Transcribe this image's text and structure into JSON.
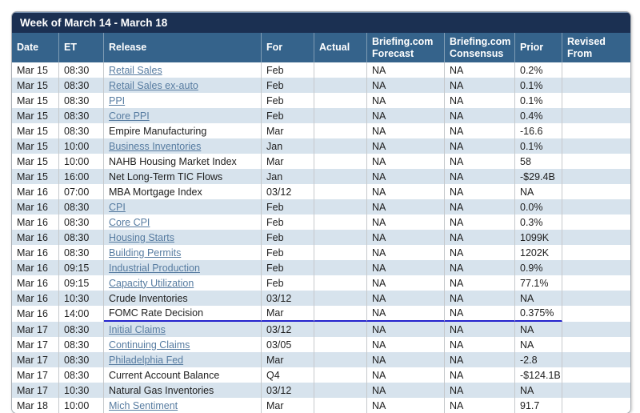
{
  "title": "Week of March 14 - March 18",
  "colors": {
    "title_bar": "#1b3052",
    "header_bg": "#35638b",
    "row_alt": "#d7e3ed",
    "link": "#567ba0",
    "separator": "#c6c9cc",
    "border": "#a9aeb4",
    "fomc_line": "#2424cc"
  },
  "columns": [
    {
      "key": "date",
      "label": "Date"
    },
    {
      "key": "et",
      "label": "ET"
    },
    {
      "key": "release",
      "label": "Release"
    },
    {
      "key": "for",
      "label": "For"
    },
    {
      "key": "actual",
      "label": "Actual"
    },
    {
      "key": "forecast",
      "label": "Briefing.com Forecast"
    },
    {
      "key": "consensus",
      "label": "Briefing.com Consensus"
    },
    {
      "key": "prior",
      "label": "Prior"
    },
    {
      "key": "revised",
      "label": "Revised From"
    }
  ],
  "rows": [
    {
      "date": "Mar 15",
      "et": "08:30",
      "release": "Retail Sales",
      "link": true,
      "for": "Feb",
      "actual": "",
      "forecast": "NA",
      "consensus": "NA",
      "prior": "0.2%",
      "revised": ""
    },
    {
      "date": "Mar 15",
      "et": "08:30",
      "release": "Retail Sales ex-auto",
      "link": true,
      "for": "Feb",
      "actual": "",
      "forecast": "NA",
      "consensus": "NA",
      "prior": "0.1%",
      "revised": ""
    },
    {
      "date": "Mar 15",
      "et": "08:30",
      "release": "PPI",
      "link": true,
      "for": "Feb",
      "actual": "",
      "forecast": "NA",
      "consensus": "NA",
      "prior": "0.1%",
      "revised": ""
    },
    {
      "date": "Mar 15",
      "et": "08:30",
      "release": "Core PPI",
      "link": true,
      "for": "Feb",
      "actual": "",
      "forecast": "NA",
      "consensus": "NA",
      "prior": "0.4%",
      "revised": ""
    },
    {
      "date": "Mar 15",
      "et": "08:30",
      "release": "Empire Manufacturing",
      "link": false,
      "for": "Mar",
      "actual": "",
      "forecast": "NA",
      "consensus": "NA",
      "prior": "-16.6",
      "revised": ""
    },
    {
      "date": "Mar 15",
      "et": "10:00",
      "release": "Business Inventories",
      "link": true,
      "for": "Jan",
      "actual": "",
      "forecast": "NA",
      "consensus": "NA",
      "prior": "0.1%",
      "revised": ""
    },
    {
      "date": "Mar 15",
      "et": "10:00",
      "release": "NAHB Housing Market Index",
      "link": false,
      "for": "Mar",
      "actual": "",
      "forecast": "NA",
      "consensus": "NA",
      "prior": "58",
      "revised": ""
    },
    {
      "date": "Mar 15",
      "et": "16:00",
      "release": "Net Long-Term TIC Flows",
      "link": false,
      "for": "Jan",
      "actual": "",
      "forecast": "NA",
      "consensus": "NA",
      "prior": "-$29.4B",
      "revised": ""
    },
    {
      "date": "Mar 16",
      "et": "07:00",
      "release": "MBA Mortgage Index",
      "link": false,
      "for": "03/12",
      "actual": "",
      "forecast": "NA",
      "consensus": "NA",
      "prior": "NA",
      "revised": ""
    },
    {
      "date": "Mar 16",
      "et": "08:30",
      "release": "CPI",
      "link": true,
      "for": "Feb",
      "actual": "",
      "forecast": "NA",
      "consensus": "NA",
      "prior": "0.0%",
      "revised": ""
    },
    {
      "date": "Mar 16",
      "et": "08:30",
      "release": "Core CPI",
      "link": true,
      "for": "Feb",
      "actual": "",
      "forecast": "NA",
      "consensus": "NA",
      "prior": "0.3%",
      "revised": ""
    },
    {
      "date": "Mar 16",
      "et": "08:30",
      "release": "Housing Starts",
      "link": true,
      "for": "Feb",
      "actual": "",
      "forecast": "NA",
      "consensus": "NA",
      "prior": "1099K",
      "revised": ""
    },
    {
      "date": "Mar 16",
      "et": "08:30",
      "release": "Building Permits",
      "link": true,
      "for": "Feb",
      "actual": "",
      "forecast": "NA",
      "consensus": "NA",
      "prior": "1202K",
      "revised": ""
    },
    {
      "date": "Mar 16",
      "et": "09:15",
      "release": "Industrial Production",
      "link": true,
      "for": "Feb",
      "actual": "",
      "forecast": "NA",
      "consensus": "NA",
      "prior": "0.9%",
      "revised": ""
    },
    {
      "date": "Mar 16",
      "et": "09:15",
      "release": "Capacity Utilization",
      "link": true,
      "for": "Feb",
      "actual": "",
      "forecast": "NA",
      "consensus": "NA",
      "prior": "77.1%",
      "revised": ""
    },
    {
      "date": "Mar 16",
      "et": "10:30",
      "release": "Crude Inventories",
      "link": false,
      "for": "03/12",
      "actual": "",
      "forecast": "NA",
      "consensus": "NA",
      "prior": "NA",
      "revised": ""
    },
    {
      "date": "Mar 16",
      "et": "14:00",
      "release": "FOMC Rate Decision",
      "link": false,
      "for": "Mar",
      "actual": "",
      "forecast": "NA",
      "consensus": "NA",
      "prior": "0.375%",
      "revised": "",
      "underline": true
    },
    {
      "date": "Mar 17",
      "et": "08:30",
      "release": "Initial Claims",
      "link": true,
      "for": "03/12",
      "actual": "",
      "forecast": "NA",
      "consensus": "NA",
      "prior": "NA",
      "revised": ""
    },
    {
      "date": "Mar 17",
      "et": "08:30",
      "release": "Continuing Claims",
      "link": true,
      "for": "03/05",
      "actual": "",
      "forecast": "NA",
      "consensus": "NA",
      "prior": "NA",
      "revised": ""
    },
    {
      "date": "Mar 17",
      "et": "08:30",
      "release": "Philadelphia Fed",
      "link": true,
      "for": "Mar",
      "actual": "",
      "forecast": "NA",
      "consensus": "NA",
      "prior": "-2.8",
      "revised": ""
    },
    {
      "date": "Mar 17",
      "et": "08:30",
      "release": "Current Account Balance",
      "link": false,
      "for": "Q4",
      "actual": "",
      "forecast": "NA",
      "consensus": "NA",
      "prior": "-$124.1B",
      "revised": ""
    },
    {
      "date": "Mar 17",
      "et": "10:30",
      "release": "Natural Gas Inventories",
      "link": false,
      "for": "03/12",
      "actual": "",
      "forecast": "NA",
      "consensus": "NA",
      "prior": "NA",
      "revised": ""
    },
    {
      "date": "Mar 18",
      "et": "10:00",
      "release": "Mich Sentiment",
      "link": true,
      "for": "Mar",
      "actual": "",
      "forecast": "NA",
      "consensus": "NA",
      "prior": "91.7",
      "revised": ""
    }
  ]
}
